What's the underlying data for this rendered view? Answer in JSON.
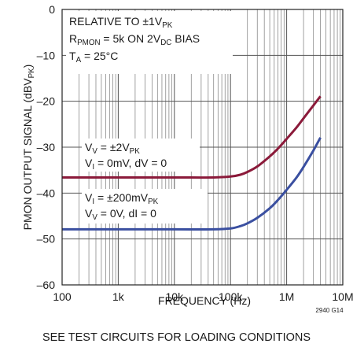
{
  "chart_data": {
    "type": "line",
    "xscale": "log",
    "xlim": [
      100,
      10000000
    ],
    "ylim": [
      -60,
      0
    ],
    "grid": true,
    "xlabel": "FREQUENCY (Hz)",
    "ylabel": {
      "base": "PMON OUTPUT SIGNAL (dBV",
      "sub": "PK",
      "end": ")"
    },
    "xticks": [
      {
        "value": 100,
        "label": "100"
      },
      {
        "value": 1000,
        "label": "1k"
      },
      {
        "value": 10000,
        "label": "10k"
      },
      {
        "value": 100000,
        "label": "100k"
      },
      {
        "value": 1000000,
        "label": "1M"
      },
      {
        "value": 10000000,
        "label": "10M"
      }
    ],
    "yticks": [
      {
        "value": 0,
        "label": "0"
      },
      {
        "value": -10,
        "label": "–10"
      },
      {
        "value": -20,
        "label": "–20"
      },
      {
        "value": -30,
        "label": "–30"
      },
      {
        "value": -40,
        "label": "–40"
      },
      {
        "value": -50,
        "label": "–50"
      },
      {
        "value": -60,
        "label": "–60"
      }
    ],
    "conditions": [
      [
        {
          "t": "RELATIVE TO ±1V"
        },
        {
          "t": "PK",
          "sub": true
        }
      ],
      [
        {
          "t": "R"
        },
        {
          "t": "PMON",
          "sub": true
        },
        {
          "t": " = 5k ON 2V"
        },
        {
          "t": "DC",
          "sub": true
        },
        {
          "t": " BIAS"
        }
      ],
      [
        {
          "t": "T"
        },
        {
          "t": "A",
          "sub": true
        },
        {
          "t": " = 25°C"
        }
      ]
    ],
    "series": [
      {
        "color": "#8b1a3a",
        "label": [
          [
            {
              "t": "V"
            },
            {
              "t": "V",
              "sub": true
            },
            {
              "t": " = ±2V"
            },
            {
              "t": "PK",
              "sub": true
            }
          ],
          [
            {
              "t": "V"
            },
            {
              "t": "I",
              "sub": true
            },
            {
              "t": " = 0mV, dV = 0"
            }
          ]
        ],
        "x": [
          100,
          1000,
          10000,
          50000,
          100000,
          150000,
          200000,
          300000,
          500000,
          700000,
          1000000,
          1500000,
          2000000,
          3000000,
          4000000
        ],
        "y": [
          -36.6,
          -36.6,
          -36.6,
          -36.6,
          -36.4,
          -36.0,
          -35.4,
          -34.2,
          -32.0,
          -30.3,
          -28.2,
          -25.7,
          -23.7,
          -20.9,
          -18.9
        ]
      },
      {
        "color": "#3a4fa0",
        "label": [
          [
            {
              "t": "V"
            },
            {
              "t": "I",
              "sub": true
            },
            {
              "t": " = ±200mV"
            },
            {
              "t": "PK",
              "sub": true
            }
          ],
          [
            {
              "t": "V"
            },
            {
              "t": "V",
              "sub": true
            },
            {
              "t": " = 0V, dI = 0"
            }
          ]
        ],
        "x": [
          100,
          1000,
          10000,
          50000,
          100000,
          150000,
          200000,
          300000,
          500000,
          700000,
          1000000,
          1500000,
          2000000,
          3000000,
          4000000
        ],
        "y": [
          -47.9,
          -47.9,
          -47.9,
          -47.9,
          -47.7,
          -47.2,
          -46.6,
          -45.4,
          -43.3,
          -41.5,
          -39.3,
          -36.6,
          -34.3,
          -30.7,
          -27.9
        ]
      }
    ]
  },
  "figure_code": "2940 G14",
  "caption": "SEE TEST CIRCUITS FOR LOADING CONDITIONS"
}
